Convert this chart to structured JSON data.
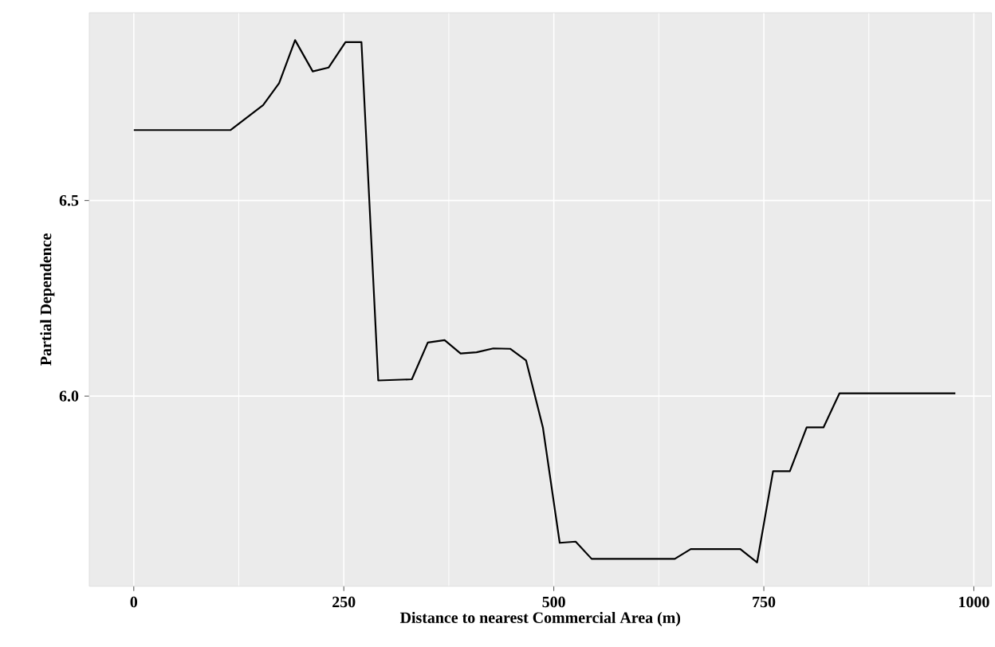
{
  "chart_data": {
    "type": "line",
    "xlabel": "Distance to nearest Commercial Area (m)",
    "ylabel": "Partial Dependence",
    "x": [
      0,
      115,
      154,
      173,
      192,
      213,
      232,
      252,
      271,
      291,
      331,
      350,
      370,
      389,
      408,
      428,
      448,
      467,
      487,
      507,
      526,
      545,
      644,
      663,
      722,
      742,
      761,
      781,
      801,
      821,
      840,
      978
    ],
    "series": [
      {
        "color": "#000000",
        "values": [
          6.68,
          6.68,
          6.744,
          6.8,
          6.91,
          6.83,
          6.84,
          6.905,
          6.905,
          6.04,
          6.043,
          6.137,
          6.143,
          6.109,
          6.112,
          6.122,
          6.121,
          6.091,
          5.92,
          5.625,
          5.628,
          5.584,
          5.584,
          5.609,
          5.609,
          5.575,
          5.808,
          5.808,
          5.92,
          5.92,
          6.007,
          6.007
        ]
      }
    ],
    "xlim": [
      -53,
      1021
    ],
    "ylim": [
      5.514,
      6.98
    ],
    "xticks": [
      0,
      250,
      500,
      750,
      1000
    ],
    "yticks": [
      {
        "value": 6.0,
        "label": "6.0"
      },
      {
        "value": 6.5,
        "label": "6.5"
      }
    ],
    "grid": true,
    "marker": "none",
    "line_style": "solid"
  }
}
